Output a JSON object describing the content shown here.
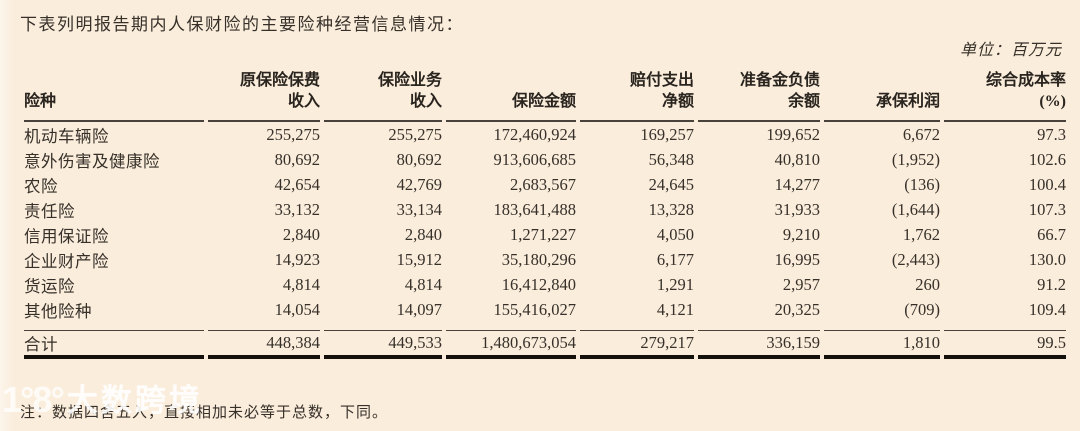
{
  "page": {
    "title": "下表列明报告期内人保财险的主要险种经营信息情况：",
    "unit_label": "单位：百万元",
    "footnote": "注：数据四舍五入，直接相加未必等于总数，下同。"
  },
  "watermark": {
    "logo": "1°8°",
    "brand": "大数跨境"
  },
  "colors": {
    "background": "#faeddc",
    "text": "#363029",
    "rule": "#49423a",
    "heavy_rule": "#14100b",
    "watermark": "#ffffff"
  },
  "table": {
    "columns": [
      {
        "key": "line-of-business",
        "lines": [
          "险种"
        ]
      },
      {
        "key": "original-premium-income",
        "lines": [
          "原保险保费",
          "收入"
        ]
      },
      {
        "key": "insurance-business-income",
        "lines": [
          "保险业务",
          "收入"
        ]
      },
      {
        "key": "insured-amount",
        "lines": [
          "保险金额"
        ]
      },
      {
        "key": "net-claims-paid",
        "lines": [
          "赔付支出",
          "净额"
        ]
      },
      {
        "key": "reserve-liability-balance",
        "lines": [
          "准备金负债",
          "余额"
        ]
      },
      {
        "key": "underwriting-profit",
        "lines": [
          "承保利润"
        ]
      },
      {
        "key": "combined-cost-ratio",
        "lines": [
          "综合成本率",
          "(%)"
        ]
      }
    ],
    "rows": [
      {
        "cells": [
          "机动车辆险",
          "255,275",
          "255,275",
          "172,460,924",
          "169,257",
          "199,652",
          "6,672",
          "97.3"
        ]
      },
      {
        "cells": [
          "意外伤害及健康险",
          "80,692",
          "80,692",
          "913,606,685",
          "56,348",
          "40,810",
          "(1,952)",
          "102.6"
        ]
      },
      {
        "cells": [
          "农险",
          "42,654",
          "42,769",
          "2,683,567",
          "24,645",
          "14,277",
          "(136)",
          "100.4"
        ]
      },
      {
        "cells": [
          "责任险",
          "33,132",
          "33,134",
          "183,641,488",
          "13,328",
          "31,933",
          "(1,644)",
          "107.3"
        ]
      },
      {
        "cells": [
          "信用保证险",
          "2,840",
          "2,840",
          "1,271,227",
          "4,050",
          "9,210",
          "1,762",
          "66.7"
        ]
      },
      {
        "cells": [
          "企业财产险",
          "14,923",
          "15,912",
          "35,180,296",
          "6,177",
          "16,995",
          "(2,443)",
          "130.0"
        ]
      },
      {
        "cells": [
          "货运险",
          "4,814",
          "4,814",
          "16,412,840",
          "1,291",
          "2,957",
          "260",
          "91.2"
        ]
      },
      {
        "cells": [
          "其他险种",
          "14,054",
          "14,097",
          "155,416,027",
          "4,121",
          "20,325",
          "(709)",
          "109.4"
        ]
      }
    ],
    "total": {
      "cells": [
        "合计",
        "448,384",
        "449,533",
        "1,480,673,054",
        "279,217",
        "336,159",
        "1,810",
        "99.5"
      ]
    }
  }
}
